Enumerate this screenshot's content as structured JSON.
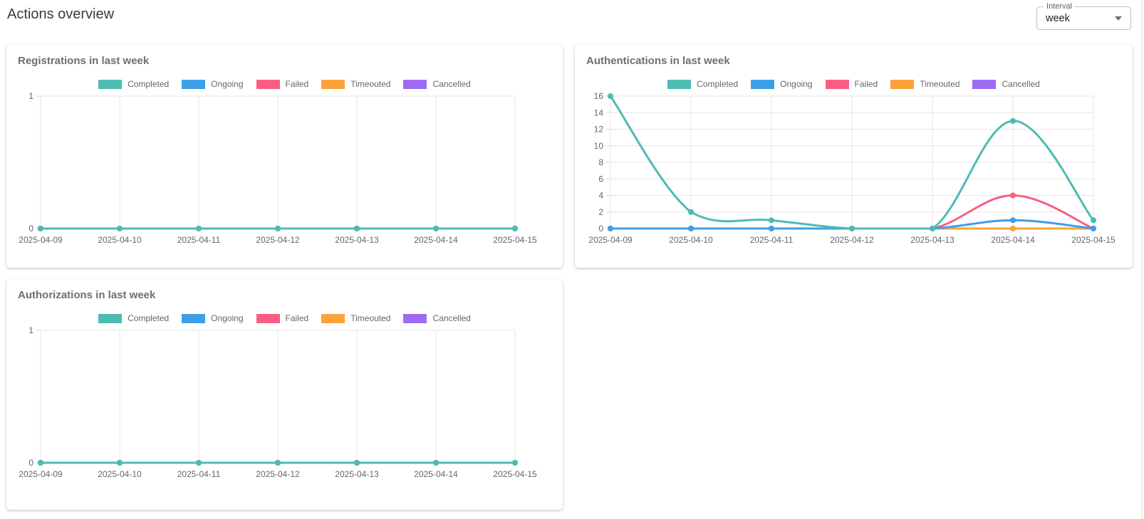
{
  "header": {
    "title": "Actions overview"
  },
  "interval": {
    "label": "Interval",
    "value": "week"
  },
  "colors": {
    "completed": "#4DBCB2",
    "ongoing": "#3E9FE8",
    "failed": "#F95E82",
    "timeouted": "#FBA23C",
    "cancelled": "#9D6CF3",
    "grid": "#e6e6e6",
    "axis_text": "#666666",
    "title_text": "#6f6f6f"
  },
  "chart_data": [
    {
      "id": "registrations",
      "type": "line",
      "title": "Registrations in last week",
      "legend_position": "top",
      "grid": true,
      "categories": [
        "2025-04-09",
        "2025-04-10",
        "2025-04-11",
        "2025-04-12",
        "2025-04-13",
        "2025-04-14",
        "2025-04-15"
      ],
      "ylim": [
        0,
        1
      ],
      "yticks": [
        0,
        1
      ],
      "series": [
        {
          "name": "Completed",
          "color": "#4DBCB2",
          "values": [
            0,
            0,
            0,
            0,
            0,
            0,
            0
          ]
        },
        {
          "name": "Ongoing",
          "color": "#3E9FE8",
          "values": [
            0,
            0,
            0,
            0,
            0,
            0,
            0
          ]
        },
        {
          "name": "Failed",
          "color": "#F95E82",
          "values": [
            0,
            0,
            0,
            0,
            0,
            0,
            0
          ]
        },
        {
          "name": "Timeouted",
          "color": "#FBA23C",
          "values": [
            0,
            0,
            0,
            0,
            0,
            0,
            0
          ]
        },
        {
          "name": "Cancelled",
          "color": "#9D6CF3",
          "values": [
            0,
            0,
            0,
            0,
            0,
            0,
            0
          ]
        }
      ]
    },
    {
      "id": "authentications",
      "type": "line",
      "title": "Authentications in last week",
      "legend_position": "top",
      "grid": true,
      "categories": [
        "2025-04-09",
        "2025-04-10",
        "2025-04-11",
        "2025-04-12",
        "2025-04-13",
        "2025-04-14",
        "2025-04-15"
      ],
      "ylim": [
        0,
        16
      ],
      "yticks": [
        0,
        2,
        4,
        6,
        8,
        10,
        12,
        14,
        16
      ],
      "series": [
        {
          "name": "Completed",
          "color": "#4DBCB2",
          "values": [
            16,
            2,
            1,
            0,
            0,
            13,
            1
          ]
        },
        {
          "name": "Ongoing",
          "color": "#3E9FE8",
          "values": [
            0,
            0,
            0,
            0,
            0,
            1,
            0
          ]
        },
        {
          "name": "Failed",
          "color": "#F95E82",
          "values": [
            0,
            0,
            0,
            0,
            0,
            4,
            0
          ]
        },
        {
          "name": "Timeouted",
          "color": "#FBA23C",
          "values": [
            0,
            0,
            0,
            0,
            0,
            0,
            0
          ]
        },
        {
          "name": "Cancelled",
          "color": "#9D6CF3",
          "values": [
            0,
            0,
            0,
            0,
            0,
            0,
            0
          ]
        }
      ]
    },
    {
      "id": "authorizations",
      "type": "line",
      "title": "Authorizations in last week",
      "legend_position": "top",
      "grid": true,
      "categories": [
        "2025-04-09",
        "2025-04-10",
        "2025-04-11",
        "2025-04-12",
        "2025-04-13",
        "2025-04-14",
        "2025-04-15"
      ],
      "ylim": [
        0,
        1
      ],
      "yticks": [
        0,
        1
      ],
      "series": [
        {
          "name": "Completed",
          "color": "#4DBCB2",
          "values": [
            0,
            0,
            0,
            0,
            0,
            0,
            0
          ]
        },
        {
          "name": "Ongoing",
          "color": "#3E9FE8",
          "values": [
            0,
            0,
            0,
            0,
            0,
            0,
            0
          ]
        },
        {
          "name": "Failed",
          "color": "#F95E82",
          "values": [
            0,
            0,
            0,
            0,
            0,
            0,
            0
          ]
        },
        {
          "name": "Timeouted",
          "color": "#FBA23C",
          "values": [
            0,
            0,
            0,
            0,
            0,
            0,
            0
          ]
        },
        {
          "name": "Cancelled",
          "color": "#9D6CF3",
          "values": [
            0,
            0,
            0,
            0,
            0,
            0,
            0
          ]
        }
      ]
    }
  ]
}
